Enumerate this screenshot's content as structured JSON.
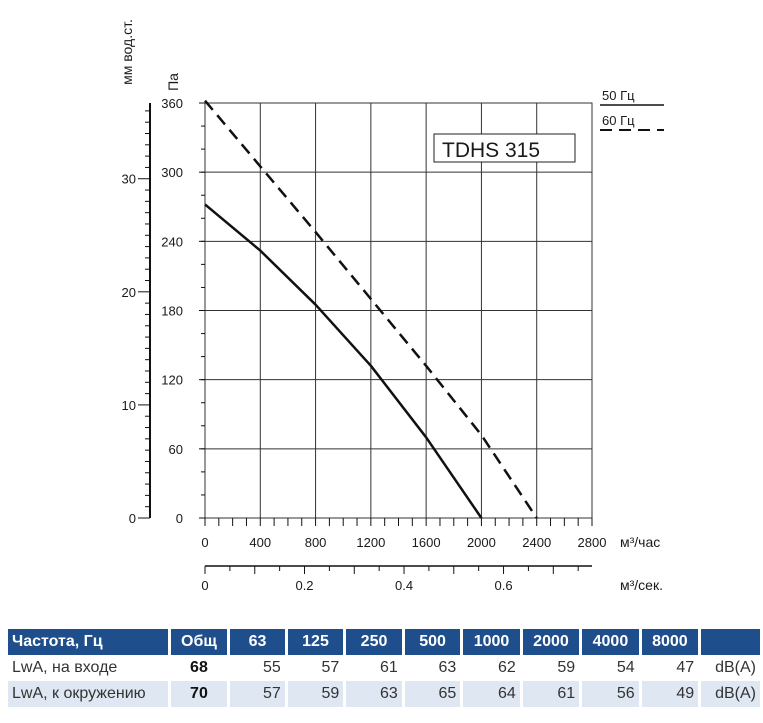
{
  "chart_data": {
    "type": "line",
    "model": "TDHS 315",
    "y_label_pa": "Па",
    "y_label_mm": "мм вод.ст.",
    "x_label_m3h": "м³/час",
    "x_label_m3s": "м³/сек.",
    "xlim": [
      0,
      2800
    ],
    "ylim": [
      0,
      360
    ],
    "x_ticks": [
      "0",
      "400",
      "800",
      "1200",
      "1600",
      "2000",
      "2400",
      "2800"
    ],
    "y_ticks": [
      "0",
      "60",
      "120",
      "180",
      "240",
      "300",
      "360"
    ],
    "mm_ticks": [
      {
        "v": 0,
        "label": "0"
      },
      {
        "v": 10,
        "label": "10"
      },
      {
        "v": 20,
        "label": "20"
      },
      {
        "v": 30,
        "label": "30"
      }
    ],
    "m3s_ticks": [
      {
        "v": 0,
        "label": "0"
      },
      {
        "v": 0.2,
        "label": "0.2"
      },
      {
        "v": 0.4,
        "label": "0.4"
      },
      {
        "v": 0.6,
        "label": "0.6"
      }
    ],
    "grid": true,
    "legend_position": "top-right",
    "series": [
      {
        "name": "50 Гц",
        "dash": false,
        "x": [
          0,
          400,
          800,
          1200,
          1600,
          2000
        ],
        "y": [
          272,
          232,
          185,
          132,
          70,
          0
        ]
      },
      {
        "name": "60 Гц",
        "dash": true,
        "x": [
          0,
          400,
          800,
          1200,
          1600,
          2000,
          2400
        ],
        "y": [
          362,
          305,
          248,
          190,
          132,
          72,
          0
        ]
      }
    ]
  },
  "table": {
    "header": [
      "Частота, Гц",
      "Общ",
      "63",
      "125",
      "250",
      "500",
      "1000",
      "2000",
      "4000",
      "8000",
      ""
    ],
    "rows": [
      {
        "label": "LwA, на входе",
        "total": "68",
        "values": [
          "55",
          "57",
          "61",
          "63",
          "62",
          "59",
          "54",
          "47"
        ],
        "unit": "dB(A)"
      },
      {
        "label": "LwA, к окружению",
        "total": "70",
        "values": [
          "57",
          "59",
          "63",
          "65",
          "64",
          "61",
          "56",
          "49"
        ],
        "unit": "dB(A)"
      }
    ]
  },
  "colors": {
    "table_header": "#1f4e8c",
    "row_alt": "#dfe7f3",
    "curve": "#111111",
    "grid": "#333333"
  }
}
